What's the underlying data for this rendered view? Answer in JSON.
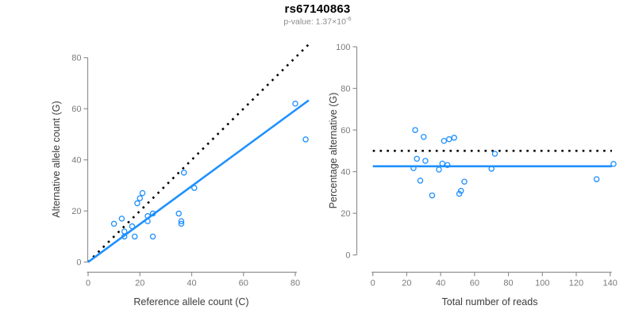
{
  "header": {
    "title": "rs67140863",
    "pvalue_prefix": "p-value: 1.37×10",
    "pvalue_exponent": "-6"
  },
  "colors": {
    "accent_blue": "#1E90FF",
    "dotted_black": "#000000",
    "axis_line": "#919191",
    "tick_text": "#7b7b7b",
    "axis_title_text": "#3c3c3c",
    "subtitle_text": "#8a8a8a"
  },
  "chart_data": [
    {
      "type": "scatter",
      "title": "rs67140863",
      "xlabel": "Reference allele count (C)",
      "ylabel": "Alternative allele count (G)",
      "xlim": [
        0,
        85.5
      ],
      "ylim": [
        0,
        85.5
      ],
      "xticks": [
        0,
        20,
        40,
        60,
        80
      ],
      "yticks": [
        0,
        20,
        40,
        60,
        80
      ],
      "grid": false,
      "marker": "open-circle",
      "points": [
        [
          10,
          15
        ],
        [
          13,
          17
        ],
        [
          14,
          12
        ],
        [
          14,
          10
        ],
        [
          17,
          14
        ],
        [
          18,
          10
        ],
        [
          19,
          23
        ],
        [
          20,
          25
        ],
        [
          21,
          27
        ],
        [
          23,
          18
        ],
        [
          23,
          16
        ],
        [
          25,
          19
        ],
        [
          25,
          10
        ],
        [
          35,
          19
        ],
        [
          36,
          16
        ],
        [
          36,
          15
        ],
        [
          37,
          35
        ],
        [
          41,
          29
        ],
        [
          80,
          62
        ],
        [
          84,
          48
        ]
      ],
      "lines": [
        {
          "name": "identity-line",
          "x1": 0,
          "y1": 0,
          "x2": 85.2,
          "y2": 85.2,
          "dash": true,
          "color": "#000000"
        },
        {
          "name": "fit-line",
          "x1": 0,
          "y1": 0,
          "x2": 85.2,
          "y2": 63.3,
          "dash": false,
          "color": "#1E90FF"
        }
      ]
    },
    {
      "type": "scatter",
      "title": "rs67140863",
      "xlabel": "Total number of reads",
      "ylabel": "Percentage alternative (G)",
      "xlim": [
        0,
        145
      ],
      "ylim": [
        0,
        100
      ],
      "xticks": [
        0,
        20,
        40,
        60,
        80,
        100,
        120,
        140
      ],
      "yticks": [
        0,
        20,
        40,
        60,
        80,
        100
      ],
      "grid": false,
      "marker": "open-circle",
      "points": [
        [
          25,
          60
        ],
        [
          30,
          56.7
        ],
        [
          26,
          46.2
        ],
        [
          24,
          41.7
        ],
        [
          31,
          45.2
        ],
        [
          28,
          35.7
        ],
        [
          42,
          54.8
        ],
        [
          45,
          55.6
        ],
        [
          48,
          56.3
        ],
        [
          41,
          43.9
        ],
        [
          39,
          41
        ],
        [
          44,
          43.2
        ],
        [
          35,
          28.6
        ],
        [
          54,
          35.2
        ],
        [
          52,
          30.8
        ],
        [
          51,
          29.4
        ],
        [
          72,
          48.6
        ],
        [
          70,
          41.4
        ],
        [
          142,
          43.7
        ],
        [
          132,
          36.4
        ]
      ],
      "lines": [
        {
          "name": "null-50pct-line",
          "x1": 0,
          "y1": 50,
          "x2": 141,
          "y2": 50,
          "dash": true,
          "color": "#000000"
        },
        {
          "name": "mean-pct-line",
          "x1": 0,
          "y1": 42.6,
          "x2": 141,
          "y2": 42.6,
          "dash": false,
          "color": "#1E90FF"
        }
      ]
    }
  ]
}
